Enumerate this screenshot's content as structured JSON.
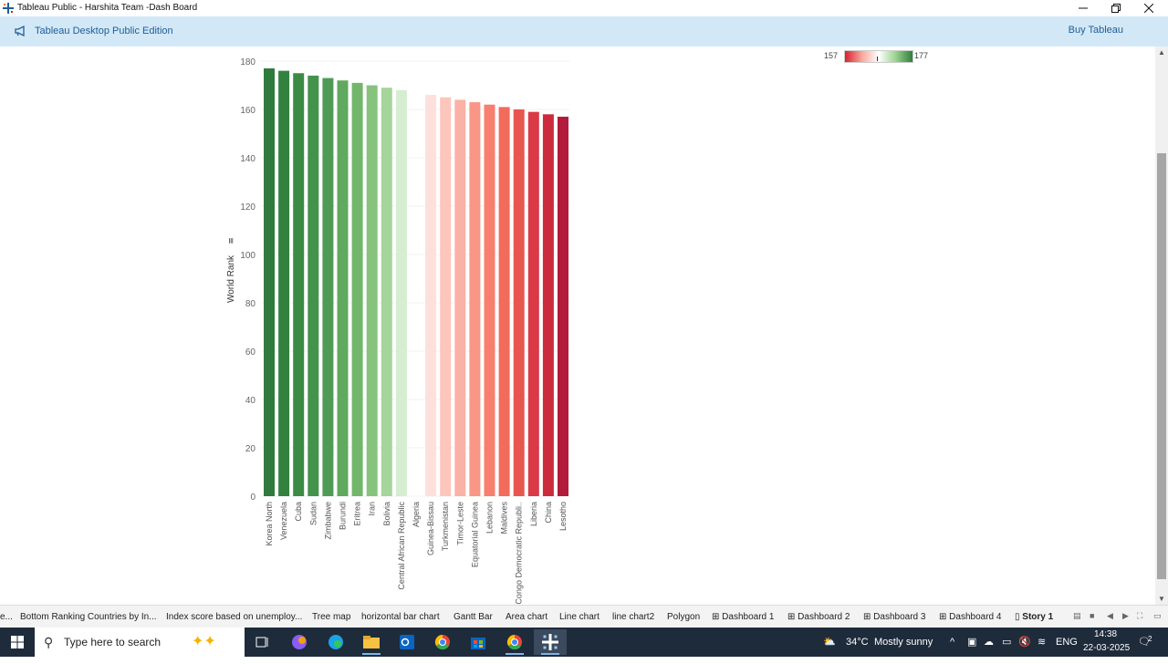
{
  "window": {
    "title": "Tableau Public - Harshita Team -Dash Board"
  },
  "ribbon": {
    "edition_label": "Tableau Desktop Public Edition",
    "buy_label": "Buy Tableau"
  },
  "legend": {
    "min_label": "157",
    "max_label": "177",
    "colors": [
      "#d7202f",
      "#ffffff",
      "#2f7e3e"
    ]
  },
  "chart_data": {
    "type": "bar",
    "ylabel": "World Rank",
    "ylim": [
      0,
      180
    ],
    "yticks": [
      0,
      20,
      40,
      60,
      80,
      100,
      120,
      140,
      160,
      180
    ],
    "categories": [
      "Korea North",
      "Venezuela",
      "Cuba",
      "Sudan",
      "Zimbabwe",
      "Burundi",
      "Eritrea",
      "Iran",
      "Bolivia",
      "Central African Republic",
      "Algeria",
      "Guinea-Bissau",
      "Turkmenistan",
      "Timor-Leste",
      "Equatorial Guinea",
      "Lebanon",
      "Maldives",
      "Congo Democratic Republi..",
      "Liberia",
      "China",
      "Lesotho"
    ],
    "values": [
      177,
      176,
      175,
      174,
      173,
      172,
      171,
      170,
      169,
      168,
      null,
      166,
      165,
      164,
      163,
      162,
      161,
      160,
      159,
      158,
      157
    ],
    "bar_colors": [
      "#2f7b3d",
      "#33813f",
      "#3b8b45",
      "#44934c",
      "#4f9b55",
      "#60a95f",
      "#72b66b",
      "#87c37d",
      "#a6d59b",
      "#d5edd0",
      "#ffffff",
      "#fde0dc",
      "#fcc6bd",
      "#fbb2a6",
      "#f99686",
      "#f67f6f",
      "#f36b5d",
      "#e8554f",
      "#da3a46",
      "#cc2b3e",
      "#b31b3c"
    ]
  },
  "tabs": [
    {
      "label": "e..."
    },
    {
      "label": "Bottom Ranking  Countries by In..."
    },
    {
      "label": "Index score based on unemploy..."
    },
    {
      "label": "Tree map"
    },
    {
      "label": "horizontal bar chart"
    },
    {
      "label": "Gantt Bar"
    },
    {
      "label": "Area chart"
    },
    {
      "label": "Line chart"
    },
    {
      "label": "line chart2"
    },
    {
      "label": "Polygon"
    },
    {
      "label": "Dashboard 1"
    },
    {
      "label": "Dashboard 2"
    },
    {
      "label": "Dashboard 3"
    },
    {
      "label": "Dashboard 4"
    },
    {
      "label": "Story 1"
    }
  ],
  "taskbar": {
    "search_placeholder": "Type here to search",
    "weather_temp": "34°C",
    "weather_text": "Mostly sunny",
    "language": "ENG",
    "time": "14:38",
    "date": "22-03-2025",
    "notification_count": "2"
  }
}
